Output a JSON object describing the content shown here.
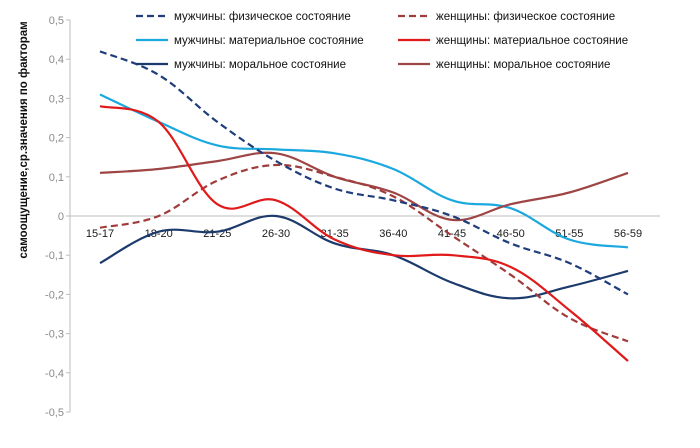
{
  "chart_data": {
    "type": "line",
    "ylabel": "самоощущение,ср.значения по факторам",
    "xlabel": "",
    "categories": [
      "15-17",
      "18-20",
      "21-25",
      "26-30",
      "31-35",
      "36-40",
      "41-45",
      "46-50",
      "51-55",
      "56-59"
    ],
    "ylim": [
      -0.5,
      0.5
    ],
    "yticks": [
      "0,5",
      "0,4",
      "0,3",
      "0,2",
      "0,1",
      "0",
      "-0,1",
      "-0,2",
      "-0,3",
      "-0,4",
      "-0,5"
    ],
    "ytick_values": [
      0.5,
      0.4,
      0.3,
      0.2,
      0.1,
      0,
      -0.1,
      -0.2,
      -0.3,
      -0.4,
      -0.5
    ],
    "grid": false,
    "legend": "top",
    "series": [
      {
        "name": "мужчины: физическое состояние",
        "color": "#1f3d7a",
        "dash": "dashed",
        "values": [
          0.42,
          0.36,
          0.24,
          0.14,
          0.07,
          0.04,
          0.0,
          -0.07,
          -0.12,
          -0.2
        ]
      },
      {
        "name": "женщины: физическое состояние",
        "color": "#a03c3c",
        "dash": "dashed",
        "values": [
          -0.03,
          0.0,
          0.09,
          0.13,
          0.1,
          0.05,
          -0.05,
          -0.15,
          -0.26,
          -0.32
        ]
      },
      {
        "name": "мужчины: материальное состояние",
        "color": "#1aa8df",
        "dash": "solid",
        "values": [
          0.31,
          0.24,
          0.18,
          0.17,
          0.16,
          0.12,
          0.04,
          0.02,
          -0.06,
          -0.08
        ]
      },
      {
        "name": "женщины: материальное состояние",
        "color": "#e01a1a",
        "dash": "solid",
        "values": [
          0.28,
          0.24,
          0.03,
          0.04,
          -0.06,
          -0.1,
          -0.1,
          -0.13,
          -0.24,
          -0.37
        ]
      },
      {
        "name": "мужчины: моральное состояние",
        "color": "#1c3a6c",
        "dash": "solid",
        "values": [
          -0.12,
          -0.04,
          -0.04,
          0.0,
          -0.07,
          -0.1,
          -0.17,
          -0.21,
          -0.18,
          -0.14
        ]
      },
      {
        "name": "женщины: моральное состояние",
        "color": "#9e4545",
        "dash": "solid",
        "values": [
          0.11,
          0.12,
          0.14,
          0.16,
          0.1,
          0.06,
          -0.01,
          0.03,
          0.06,
          0.11
        ]
      }
    ]
  }
}
